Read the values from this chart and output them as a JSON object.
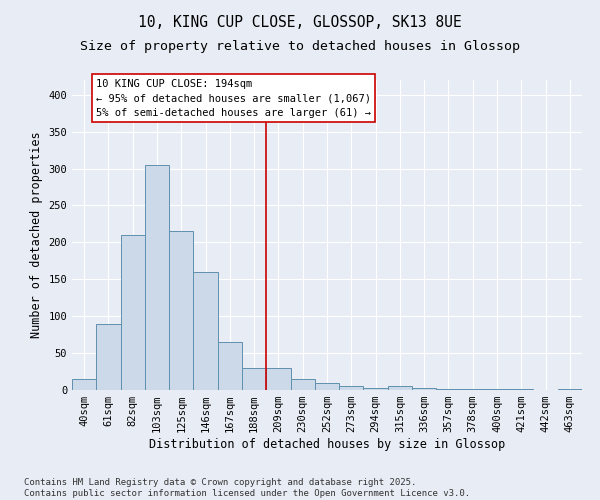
{
  "title_line1": "10, KING CUP CLOSE, GLOSSOP, SK13 8UE",
  "title_line2": "Size of property relative to detached houses in Glossop",
  "xlabel": "Distribution of detached houses by size in Glossop",
  "ylabel": "Number of detached properties",
  "categories": [
    "40sqm",
    "61sqm",
    "82sqm",
    "103sqm",
    "125sqm",
    "146sqm",
    "167sqm",
    "188sqm",
    "209sqm",
    "230sqm",
    "252sqm",
    "273sqm",
    "294sqm",
    "315sqm",
    "336sqm",
    "357sqm",
    "378sqm",
    "400sqm",
    "421sqm",
    "442sqm",
    "463sqm"
  ],
  "values": [
    15,
    90,
    210,
    305,
    215,
    160,
    65,
    30,
    30,
    15,
    10,
    5,
    3,
    5,
    3,
    2,
    1,
    2,
    1,
    0,
    2
  ],
  "bar_color": "#ccd9e8",
  "bar_edge_color": "#6090b0",
  "background_color": "#e8edf5",
  "grid_color": "#ffffff",
  "vline_x_index": 7,
  "vline_color": "#cc0000",
  "annotation_title": "10 KING CUP CLOSE: 194sqm",
  "annotation_line1": "← 95% of detached houses are smaller (1,067)",
  "annotation_line2": "5% of semi-detached houses are larger (61) →",
  "annotation_box_facecolor": "#ffffff",
  "annotation_box_edgecolor": "#cc0000",
  "footnote1": "Contains HM Land Registry data © Crown copyright and database right 2025.",
  "footnote2": "Contains public sector information licensed under the Open Government Licence v3.0.",
  "ylim": [
    0,
    420
  ],
  "yticks": [
    0,
    50,
    100,
    150,
    200,
    250,
    300,
    350,
    400
  ],
  "title_fontsize": 10.5,
  "subtitle_fontsize": 9.5,
  "axis_label_fontsize": 8.5,
  "tick_fontsize": 7.5,
  "annotation_fontsize": 7.5,
  "footnote_fontsize": 6.5
}
